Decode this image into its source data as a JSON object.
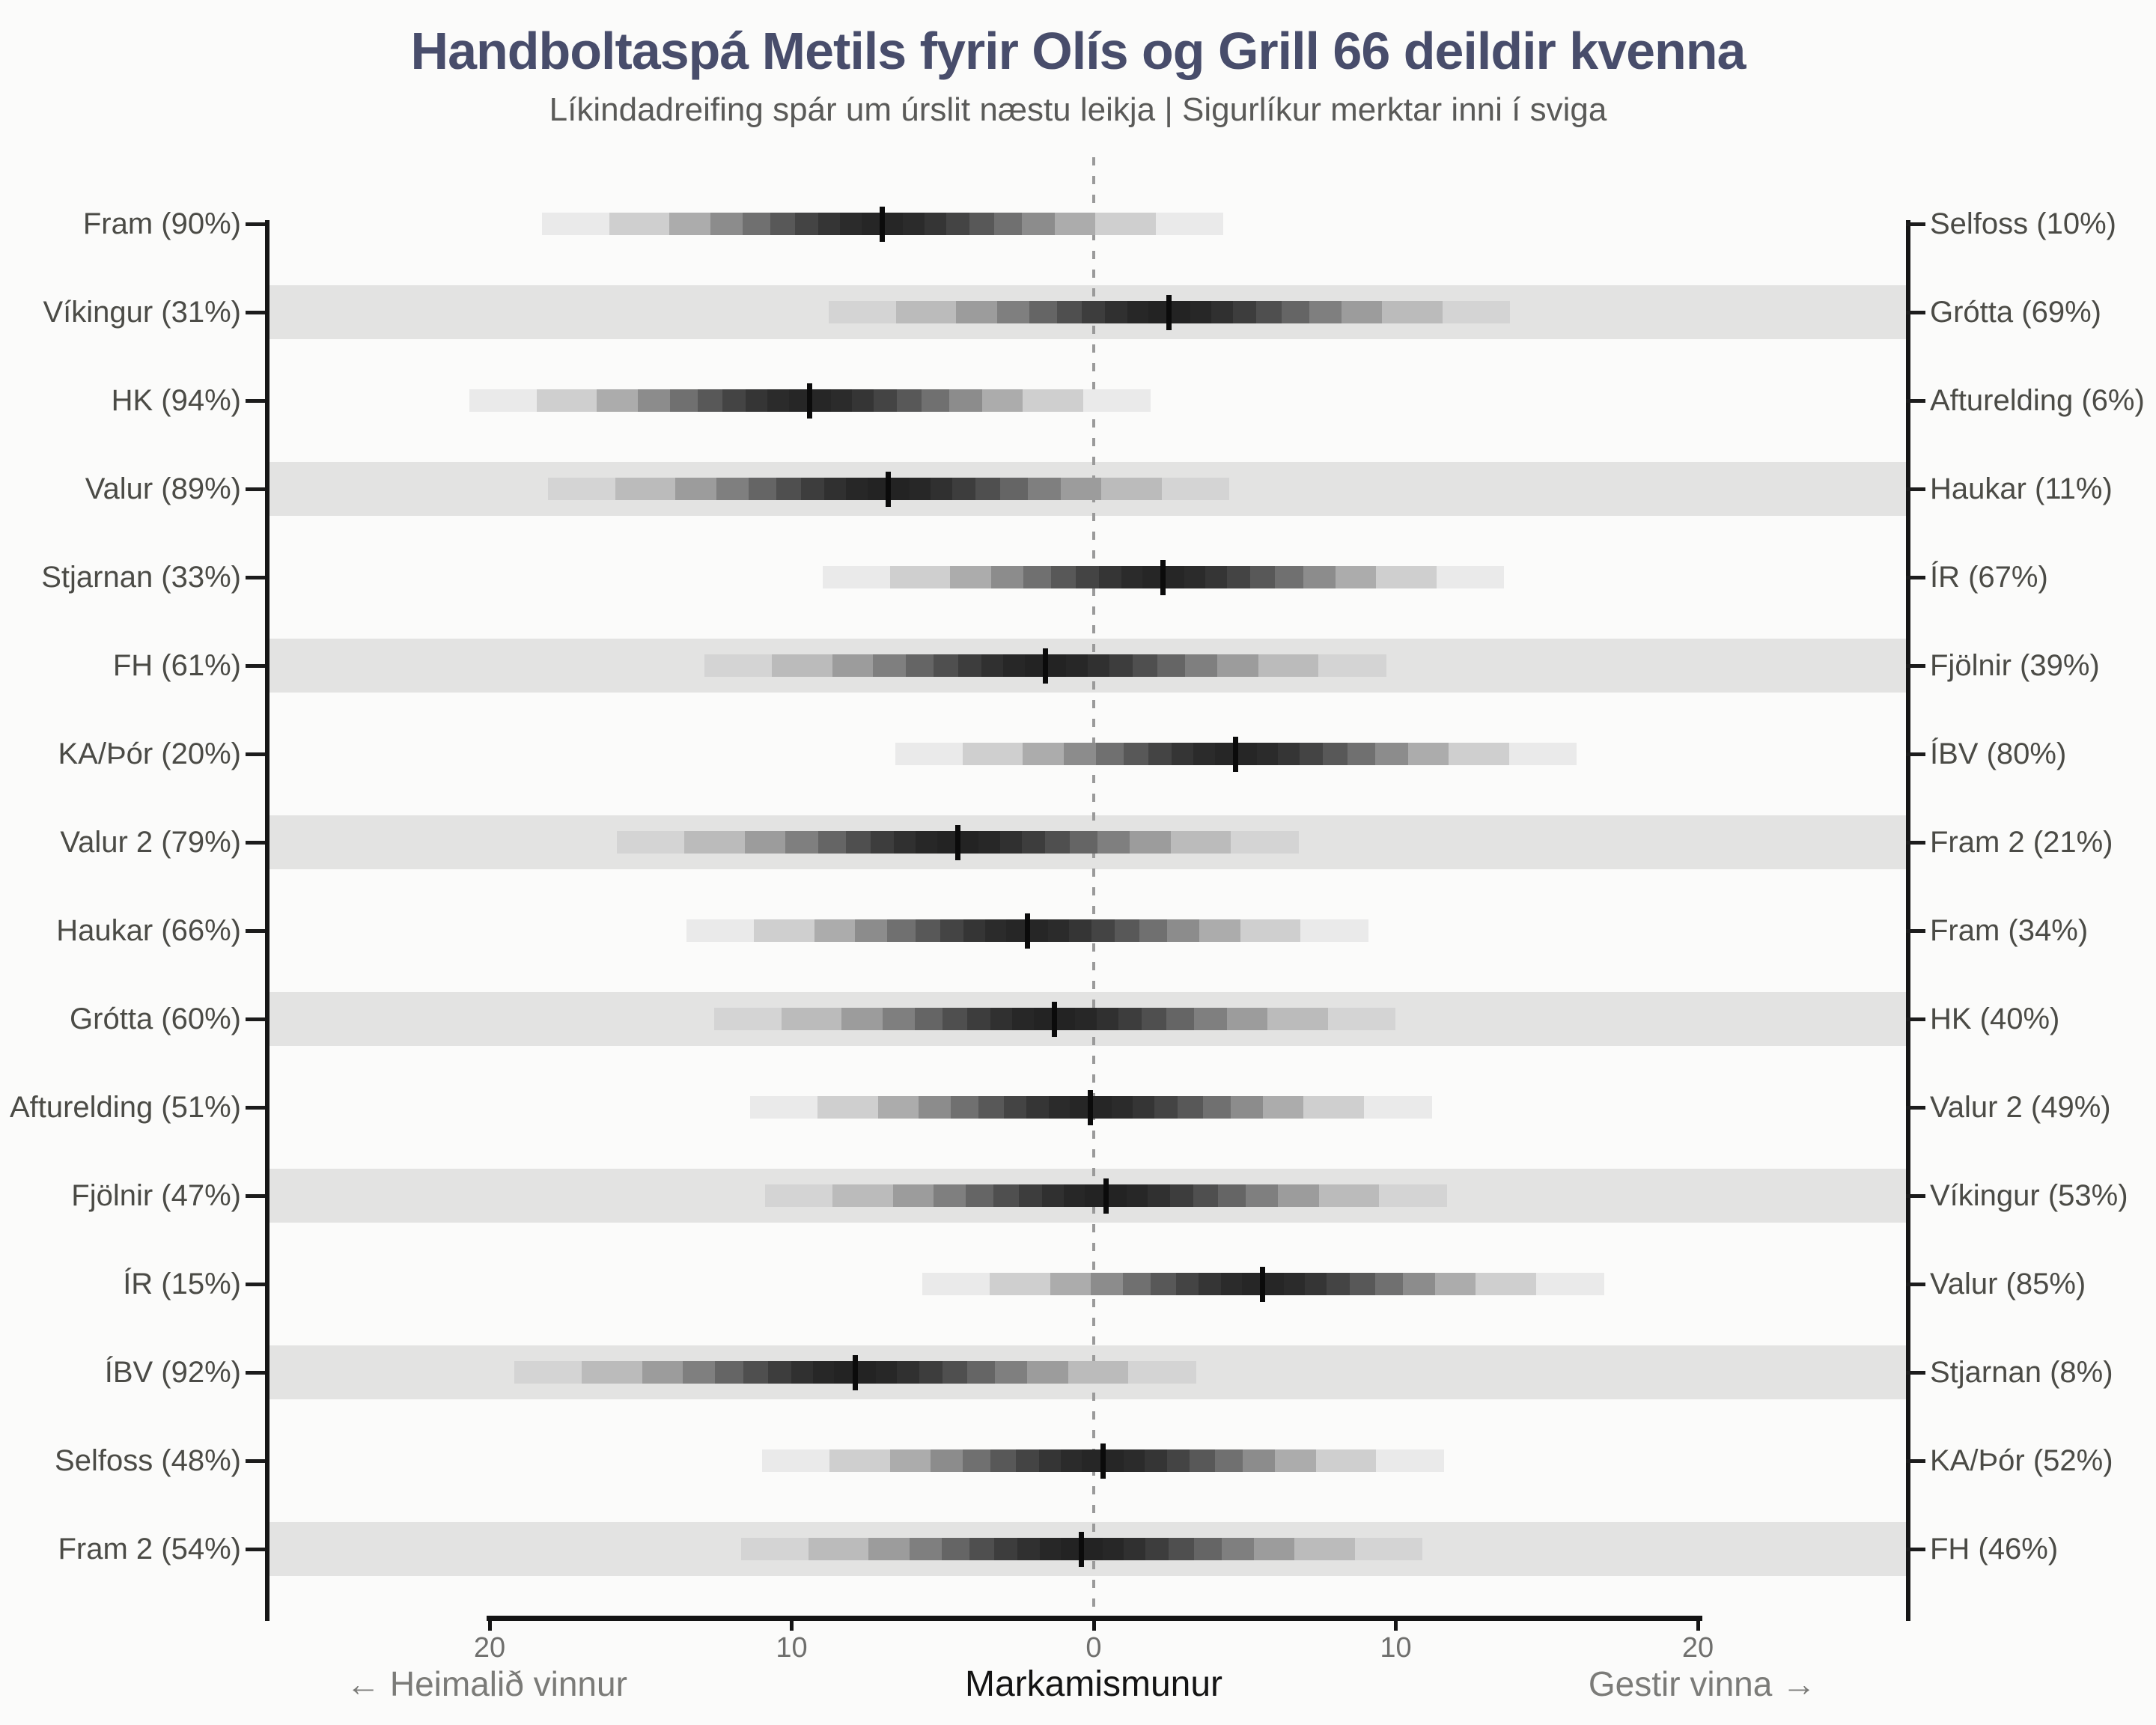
{
  "page": {
    "background": "#fbfbfa"
  },
  "header": {
    "title": "Handboltaspá Metils fyrir Olís og Grill 66 deildir kvenna",
    "subtitle": "Líkindadreifing spár um úrslit næstu leikja | Sigurlíkur merktar inni í sviga",
    "title_color": "#484d6b"
  },
  "colors": {
    "background": "#fbfbfa",
    "row_band": "#e3e3e2",
    "axis": "#141414",
    "team_label": "#4b4b46",
    "axis_tick_label": "#6f6f6d",
    "caption_gray": "#7b7b78",
    "median_tick": "#0b0b0b",
    "zero_line_dash": "#9a9a9a"
  },
  "chart_data": {
    "type": "distribution-strip",
    "title": "Handboltaspá Metils fyrir Olís og Grill 66 deildir kvenna",
    "subtitle": "Líkindadreifing spár um úrslit næstu leikja | Sigurlíkur merktar inni í sviga",
    "x_axis": {
      "caption_left": "← Heimalið vinnur",
      "caption_center": "Markamismunur",
      "caption_right": "Gestir vinna →",
      "range": [
        -20,
        20
      ],
      "ticks": [
        {
          "value": -20,
          "label": "20"
        },
        {
          "value": -10,
          "label": "10"
        },
        {
          "value": 0,
          "label": "0"
        },
        {
          "value": 10,
          "label": "10"
        },
        {
          "value": 20,
          "label": "20"
        }
      ]
    },
    "distribution_model": "normal, quantile bins of 5%, truncated at |z| = 2.05; negative = home team wins by that margin",
    "matchups": [
      {
        "left_label": "Fram (90%)",
        "right_label": "Selfoss (10%)",
        "home": "Fram",
        "home_win_pct": 90,
        "away": "Selfoss",
        "away_win_pct": 10,
        "median_goal_diff": -7.0,
        "sd": 5.5
      },
      {
        "left_label": "Víkingur (31%)",
        "right_label": "Grótta (69%)",
        "home": "Víkingur",
        "home_win_pct": 31,
        "away": "Grótta",
        "away_win_pct": 69,
        "median_goal_diff": 2.5,
        "sd": 5.5
      },
      {
        "left_label": "HK (94%)",
        "right_label": "Afturelding (6%)",
        "home": "HK",
        "home_win_pct": 94,
        "away": "Afturelding",
        "away_win_pct": 6,
        "median_goal_diff": -9.4,
        "sd": 5.5
      },
      {
        "left_label": "Valur (89%)",
        "right_label": "Haukar (11%)",
        "home": "Valur",
        "home_win_pct": 89,
        "away": "Haukar",
        "away_win_pct": 11,
        "median_goal_diff": -6.8,
        "sd": 5.5
      },
      {
        "left_label": "Stjarnan (33%)",
        "right_label": "ÍR (67%)",
        "home": "Stjarnan",
        "home_win_pct": 33,
        "away": "ÍR",
        "away_win_pct": 67,
        "median_goal_diff": 2.3,
        "sd": 5.5
      },
      {
        "left_label": "FH (61%)",
        "right_label": "Fjölnir (39%)",
        "home": "FH",
        "home_win_pct": 61,
        "away": "Fjölnir",
        "away_win_pct": 39,
        "median_goal_diff": -1.6,
        "sd": 5.5
      },
      {
        "left_label": "KA/Þór (20%)",
        "right_label": "ÍBV (80%)",
        "home": "KA/Þór",
        "home_win_pct": 20,
        "away": "ÍBV",
        "away_win_pct": 80,
        "median_goal_diff": 4.7,
        "sd": 5.5
      },
      {
        "left_label": "Valur 2 (79%)",
        "right_label": "Fram 2 (21%)",
        "home": "Valur 2",
        "home_win_pct": 79,
        "away": "Fram 2",
        "away_win_pct": 21,
        "median_goal_diff": -4.5,
        "sd": 5.5
      },
      {
        "left_label": "Haukar (66%)",
        "right_label": "Fram (34%)",
        "home": "Haukar",
        "home_win_pct": 66,
        "away": "Fram",
        "away_win_pct": 34,
        "median_goal_diff": -2.2,
        "sd": 5.5
      },
      {
        "left_label": "Grótta (60%)",
        "right_label": "HK (40%)",
        "home": "Grótta",
        "home_win_pct": 60,
        "away": "HK",
        "away_win_pct": 40,
        "median_goal_diff": -1.3,
        "sd": 5.5
      },
      {
        "left_label": "Afturelding (51%)",
        "right_label": "Valur 2 (49%)",
        "home": "Afturelding",
        "home_win_pct": 51,
        "away": "Valur 2",
        "away_win_pct": 49,
        "median_goal_diff": -0.1,
        "sd": 5.5
      },
      {
        "left_label": "Fjölnir (47%)",
        "right_label": "Víkingur (53%)",
        "home": "Fjölnir",
        "home_win_pct": 47,
        "away": "Víkingur",
        "away_win_pct": 53,
        "median_goal_diff": 0.4,
        "sd": 5.5
      },
      {
        "left_label": "ÍR (15%)",
        "right_label": "Valur (85%)",
        "home": "ÍR",
        "home_win_pct": 15,
        "away": "Valur",
        "away_win_pct": 85,
        "median_goal_diff": 5.6,
        "sd": 5.5
      },
      {
        "left_label": "ÍBV (92%)",
        "right_label": "Stjarnan (8%)",
        "home": "ÍBV",
        "home_win_pct": 92,
        "away": "Stjarnan",
        "away_win_pct": 8,
        "median_goal_diff": -7.9,
        "sd": 5.5
      },
      {
        "left_label": "Selfoss (48%)",
        "right_label": "KA/Þór (52%)",
        "home": "Selfoss",
        "home_win_pct": 48,
        "away": "KA/Þór",
        "away_win_pct": 52,
        "median_goal_diff": 0.3,
        "sd": 5.5
      },
      {
        "left_label": "Fram 2 (54%)",
        "right_label": "FH (46%)",
        "home": "Fram 2",
        "home_win_pct": 54,
        "away": "FH",
        "away_win_pct": 46,
        "median_goal_diff": -0.4,
        "sd": 5.5
      }
    ]
  }
}
